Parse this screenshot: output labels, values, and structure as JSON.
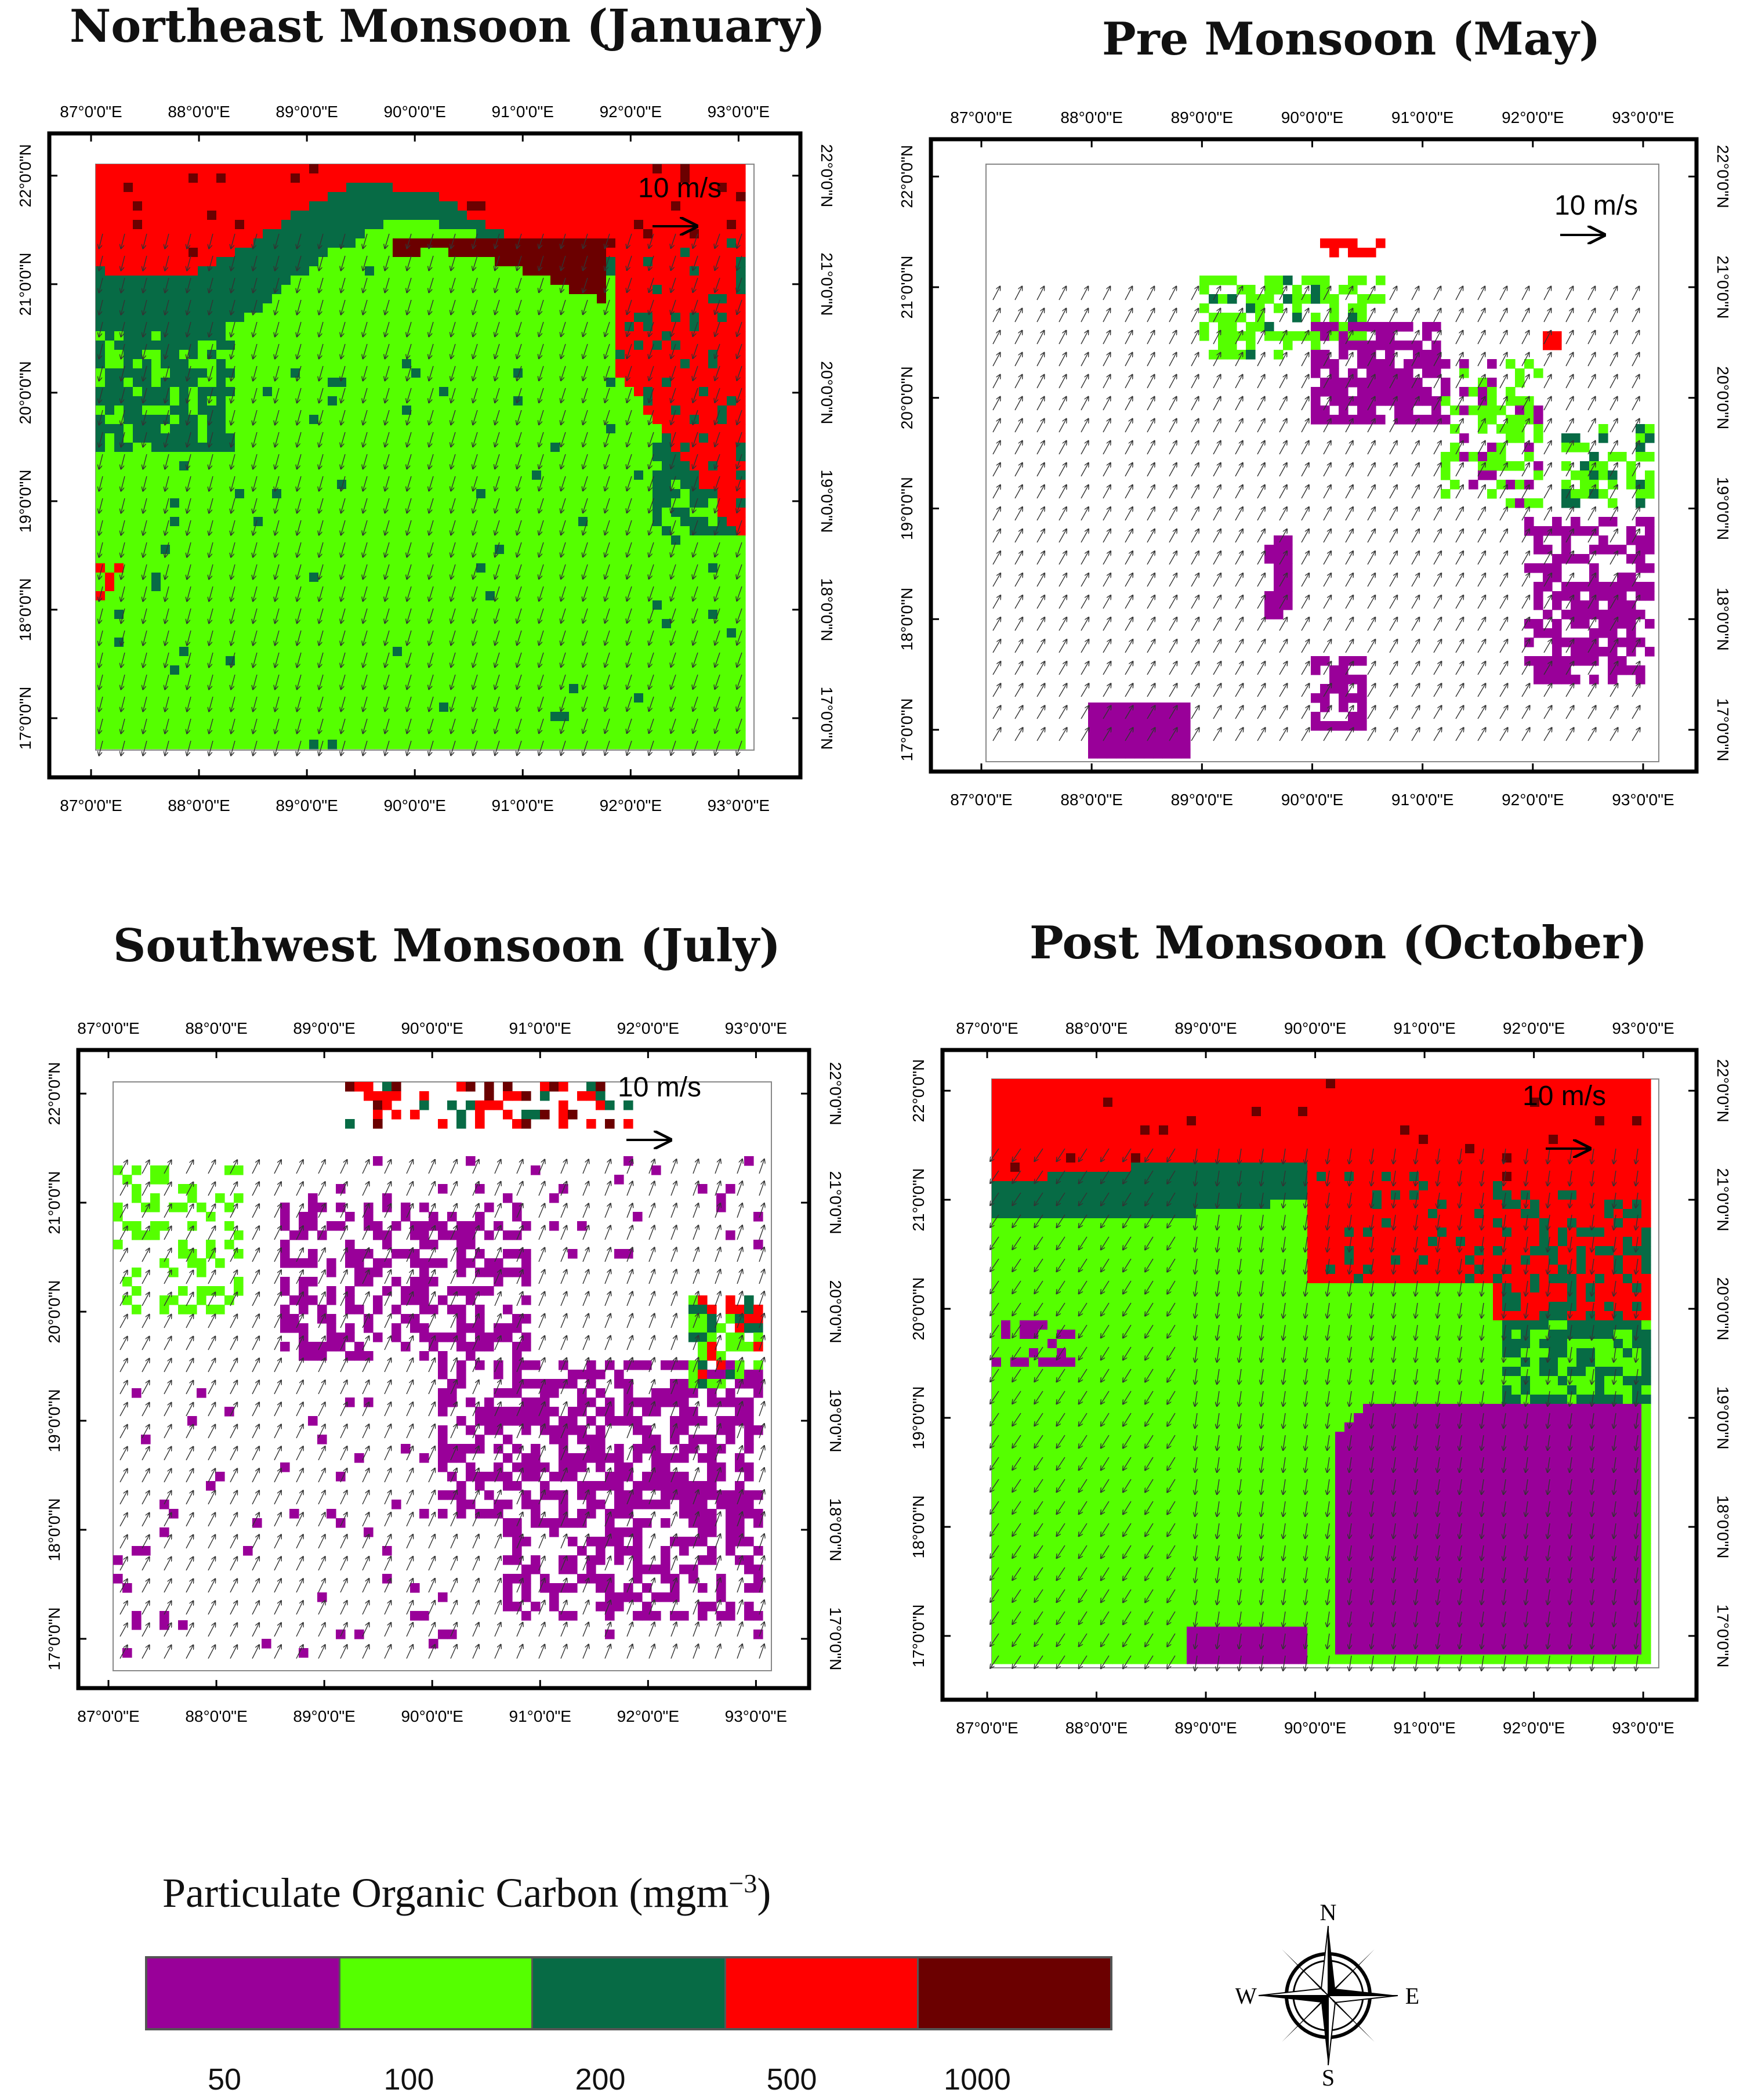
{
  "panels": [
    {
      "id": "jan",
      "title": "Northeast Monsoon (January)",
      "scale_label": "10 m/s",
      "pattern": "jan",
      "wind": "jan"
    },
    {
      "id": "may",
      "title": "Pre Monsoon (May)",
      "scale_label": "10 m/s",
      "pattern": "may",
      "wind": "may"
    },
    {
      "id": "jul",
      "title": "Southwest Monsoon (July)",
      "scale_label": "10 m/s",
      "pattern": "jul",
      "wind": "jul"
    },
    {
      "id": "oct",
      "title": "Post Monsoon (October)",
      "scale_label": "10 m/s",
      "pattern": "oct",
      "wind": "oct"
    }
  ],
  "longitude_ticks": [
    "87°0'0\"E",
    "88°0'0\"E",
    "89°0'0\"E",
    "90°0'0\"E",
    "91°0'0\"E",
    "92°0'0\"E",
    "93°0'0\"E"
  ],
  "latitude_ticks": [
    "17°0'0\"N",
    "18°0'0\"N",
    "19°0'0\"N",
    "20°0'0\"N",
    "21°0'0\"N",
    "22°0'0\"N"
  ],
  "legend": {
    "title": "Particulate Organic Carbon (mgm",
    "title_sup": "−3",
    "title_close": ")",
    "classes": [
      {
        "label": "50",
        "color": "#990099"
      },
      {
        "label": "100",
        "color": "#55ff00"
      },
      {
        "label": "200",
        "color": "#076b45"
      },
      {
        "label": "500",
        "color": "#ff0000"
      },
      {
        "label": "1000",
        "color": "#6b0000"
      }
    ]
  },
  "compass": {
    "n": "N",
    "s": "S",
    "e": "E",
    "w": "W"
  }
}
